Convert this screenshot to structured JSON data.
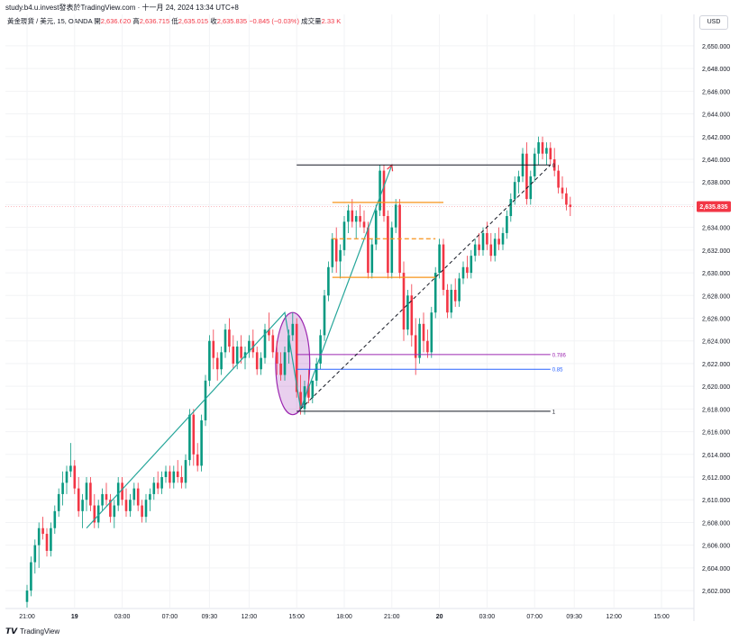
{
  "header": {
    "source_line": "study.b4.u.invest發表於TradingView.com · 十一月 24, 2024 13:34 UTC+8",
    "symbol": "黃金現貨 / 美元, 15, OANDA",
    "open_label": "開",
    "open": "2,636.620",
    "high_label": "高",
    "high": "2,636.715",
    "low_label": "低",
    "low": "2,635.015",
    "close_label": "收",
    "close": "2,635.835",
    "change": "−0.845 (−0.03%)",
    "volume_label": "成交量",
    "volume": "2.33 K",
    "currency": "USD"
  },
  "footer": {
    "brand": "TradingView",
    "logo_icon": "tradingview-logo-icon"
  },
  "colors": {
    "up": "#089981",
    "down": "#f23645",
    "trend": "#26a69a",
    "fib_786": "#9c27b0",
    "fib_85": "#2962ff",
    "orange": "#f7931a",
    "ellipse": "#9c27b0"
  },
  "chart_data": {
    "type": "candlestick",
    "title": "",
    "xlabel": "",
    "ylabel": "",
    "ylim": [
      2600.5,
      2651.5
    ],
    "y_ticks": [
      "2,650.000",
      "2,648.000",
      "2,646.000",
      "2,644.000",
      "2,642.000",
      "2,640.000",
      "2,638.000",
      "2,636.000",
      "2,634.000",
      "2,632.000",
      "2,630.000",
      "2,628.000",
      "2,626.000",
      "2,624.000",
      "2,622.000",
      "2,620.000",
      "2,618.000",
      "2,616.000",
      "2,614.000",
      "2,612.000",
      "2,610.000",
      "2,608.000",
      "2,606.000",
      "2,604.000",
      "2,602.000"
    ],
    "x_ticks": [
      {
        "label": "21:00",
        "bar": 0
      },
      {
        "label": "19",
        "bar": 12
      },
      {
        "label": "03:00",
        "bar": 24
      },
      {
        "label": "07:00",
        "bar": 36
      },
      {
        "label": "09:30",
        "bar": 46
      },
      {
        "label": "12:00",
        "bar": 56
      },
      {
        "label": "15:00",
        "bar": 68
      },
      {
        "label": "18:00",
        "bar": 80
      },
      {
        "label": "21:00",
        "bar": 92
      },
      {
        "label": "20",
        "bar": 104
      },
      {
        "label": "03:00",
        "bar": 116
      },
      {
        "label": "07:00",
        "bar": 128
      },
      {
        "label": "09:30",
        "bar": 138
      },
      {
        "label": "12:00",
        "bar": 148
      },
      {
        "label": "15:00",
        "bar": 160
      }
    ],
    "last_price_label": "2,635.835",
    "last_price": 2635.835,
    "candles": [
      [
        2601.0,
        2602.5,
        2600.5,
        2602.0
      ],
      [
        2602.0,
        2605.0,
        2601.5,
        2604.5
      ],
      [
        2604.5,
        2606.5,
        2603.5,
        2606.0
      ],
      [
        2606.0,
        2608.0,
        2604.0,
        2607.5
      ],
      [
        2607.5,
        2608.5,
        2606.5,
        2607.0
      ],
      [
        2607.0,
        2607.5,
        2605.0,
        2605.5
      ],
      [
        2605.5,
        2608.0,
        2605.0,
        2607.5
      ],
      [
        2607.5,
        2609.5,
        2607.0,
        2609.0
      ],
      [
        2609.0,
        2611.0,
        2608.5,
        2610.5
      ],
      [
        2610.5,
        2612.5,
        2609.5,
        2611.5
      ],
      [
        2611.5,
        2613.0,
        2610.5,
        2612.5
      ],
      [
        2612.5,
        2615.0,
        2612.0,
        2613.0
      ],
      [
        2613.0,
        2613.5,
        2610.5,
        2611.0
      ],
      [
        2611.0,
        2612.0,
        2608.5,
        2609.0
      ],
      [
        2609.0,
        2610.5,
        2607.5,
        2610.0
      ],
      [
        2610.0,
        2612.0,
        2609.0,
        2611.5
      ],
      [
        2611.5,
        2612.0,
        2609.0,
        2609.5
      ],
      [
        2609.5,
        2610.5,
        2607.5,
        2608.0
      ],
      [
        2608.0,
        2610.0,
        2607.5,
        2609.5
      ],
      [
        2609.5,
        2611.0,
        2609.0,
        2610.5
      ],
      [
        2610.5,
        2611.5,
        2609.5,
        2610.0
      ],
      [
        2610.0,
        2610.5,
        2608.0,
        2608.5
      ],
      [
        2608.5,
        2610.0,
        2607.5,
        2609.5
      ],
      [
        2609.5,
        2612.0,
        2609.0,
        2611.5
      ],
      [
        2611.5,
        2612.0,
        2609.5,
        2610.0
      ],
      [
        2610.0,
        2611.0,
        2608.5,
        2609.0
      ],
      [
        2609.0,
        2610.5,
        2608.5,
        2610.0
      ],
      [
        2610.0,
        2611.5,
        2609.5,
        2611.0
      ],
      [
        2611.0,
        2611.5,
        2609.0,
        2609.5
      ],
      [
        2609.5,
        2610.0,
        2608.0,
        2608.5
      ],
      [
        2608.5,
        2610.5,
        2608.0,
        2610.0
      ],
      [
        2610.0,
        2611.0,
        2609.0,
        2610.5
      ],
      [
        2610.5,
        2612.0,
        2610.0,
        2611.5
      ],
      [
        2611.5,
        2612.5,
        2610.5,
        2611.0
      ],
      [
        2611.0,
        2612.5,
        2610.5,
        2612.0
      ],
      [
        2612.0,
        2613.0,
        2611.5,
        2612.5
      ],
      [
        2612.5,
        2613.0,
        2611.0,
        2611.5
      ],
      [
        2611.5,
        2613.0,
        2611.0,
        2612.5
      ],
      [
        2612.5,
        2613.5,
        2611.5,
        2612.0
      ],
      [
        2612.0,
        2613.0,
        2611.0,
        2611.5
      ],
      [
        2611.5,
        2614.0,
        2611.0,
        2613.5
      ],
      [
        2613.5,
        2618.0,
        2613.0,
        2617.5
      ],
      [
        2617.5,
        2618.0,
        2613.0,
        2614.0
      ],
      [
        2614.0,
        2615.0,
        2612.5,
        2613.0
      ],
      [
        2613.0,
        2617.5,
        2612.5,
        2617.0
      ],
      [
        2617.0,
        2621.0,
        2616.5,
        2620.5
      ],
      [
        2620.5,
        2624.5,
        2620.0,
        2624.0
      ],
      [
        2624.0,
        2625.0,
        2621.5,
        2622.5
      ],
      [
        2622.5,
        2623.0,
        2620.5,
        2621.5
      ],
      [
        2621.5,
        2623.5,
        2621.0,
        2623.0
      ],
      [
        2623.0,
        2625.5,
        2622.5,
        2625.0
      ],
      [
        2625.0,
        2626.0,
        2623.0,
        2623.5
      ],
      [
        2623.5,
        2624.5,
        2621.5,
        2622.0
      ],
      [
        2622.0,
        2624.0,
        2621.5,
        2623.5
      ],
      [
        2623.5,
        2624.5,
        2622.0,
        2622.5
      ],
      [
        2622.5,
        2623.5,
        2621.5,
        2623.0
      ],
      [
        2623.0,
        2624.5,
        2622.5,
        2624.0
      ],
      [
        2624.0,
        2625.0,
        2622.5,
        2623.0
      ],
      [
        2623.0,
        2623.5,
        2621.0,
        2621.5
      ],
      [
        2621.5,
        2623.0,
        2621.0,
        2622.5
      ],
      [
        2622.5,
        2625.5,
        2622.0,
        2625.0
      ],
      [
        2625.0,
        2626.5,
        2624.0,
        2624.5
      ],
      [
        2624.5,
        2625.0,
        2622.5,
        2623.0
      ],
      [
        2623.0,
        2624.0,
        2621.0,
        2622.0
      ],
      [
        2622.0,
        2623.0,
        2620.5,
        2621.0
      ],
      [
        2621.0,
        2623.5,
        2620.5,
        2623.0
      ],
      [
        2623.0,
        2625.0,
        2622.0,
        2624.5
      ],
      [
        2624.5,
        2626.5,
        2624.0,
        2625.5
      ],
      [
        2625.5,
        2626.0,
        2619.0,
        2619.5
      ],
      [
        2619.5,
        2621.0,
        2617.5,
        2618.0
      ],
      [
        2618.0,
        2620.5,
        2617.5,
        2620.0
      ],
      [
        2620.0,
        2621.5,
        2618.5,
        2619.0
      ],
      [
        2619.0,
        2620.5,
        2618.5,
        2620.5
      ],
      [
        2620.5,
        2622.5,
        2620.0,
        2622.0
      ],
      [
        2622.0,
        2625.0,
        2621.5,
        2624.5
      ],
      [
        2624.5,
        2628.5,
        2624.0,
        2628.0
      ],
      [
        2628.0,
        2631.0,
        2627.5,
        2630.5
      ],
      [
        2630.5,
        2633.5,
        2630.0,
        2633.0
      ],
      [
        2633.0,
        2634.0,
        2630.0,
        2631.0
      ],
      [
        2631.0,
        2632.5,
        2629.5,
        2632.0
      ],
      [
        2632.0,
        2635.0,
        2631.5,
        2634.5
      ],
      [
        2634.5,
        2636.0,
        2633.5,
        2635.5
      ],
      [
        2635.5,
        2636.5,
        2634.0,
        2634.5
      ],
      [
        2634.5,
        2635.5,
        2633.0,
        2635.0
      ],
      [
        2635.0,
        2636.0,
        2634.0,
        2634.5
      ],
      [
        2634.5,
        2635.5,
        2633.5,
        2634.0
      ],
      [
        2634.0,
        2634.5,
        2629.5,
        2630.0
      ],
      [
        2630.0,
        2633.0,
        2629.5,
        2632.5
      ],
      [
        2632.5,
        2636.0,
        2632.0,
        2635.5
      ],
      [
        2635.5,
        2639.5,
        2635.0,
        2639.0
      ],
      [
        2639.0,
        2639.5,
        2634.5,
        2635.0
      ],
      [
        2635.0,
        2635.5,
        2629.5,
        2630.0
      ],
      [
        2630.0,
        2634.5,
        2629.5,
        2634.0
      ],
      [
        2634.0,
        2636.5,
        2633.5,
        2636.0
      ],
      [
        2636.0,
        2636.5,
        2629.5,
        2630.0
      ],
      [
        2630.0,
        2631.0,
        2624.0,
        2625.0
      ],
      [
        2625.0,
        2628.5,
        2624.5,
        2628.0
      ],
      [
        2628.0,
        2629.0,
        2623.5,
        2624.5
      ],
      [
        2624.5,
        2626.0,
        2621.0,
        2622.5
      ],
      [
        2622.5,
        2626.0,
        2622.0,
        2625.5
      ],
      [
        2625.5,
        2626.5,
        2623.0,
        2624.0
      ],
      [
        2624.0,
        2625.0,
        2622.5,
        2623.0
      ],
      [
        2623.0,
        2627.0,
        2622.5,
        2626.5
      ],
      [
        2626.5,
        2630.5,
        2626.0,
        2630.0
      ],
      [
        2630.0,
        2633.0,
        2629.5,
        2632.5
      ],
      [
        2632.5,
        2633.0,
        2628.0,
        2628.5
      ],
      [
        2628.5,
        2629.0,
        2626.0,
        2626.5
      ],
      [
        2626.5,
        2629.0,
        2626.0,
        2628.5
      ],
      [
        2628.5,
        2629.5,
        2627.0,
        2627.5
      ],
      [
        2627.5,
        2630.0,
        2627.0,
        2629.5
      ],
      [
        2629.5,
        2631.0,
        2629.0,
        2630.5
      ],
      [
        2630.5,
        2631.5,
        2629.5,
        2630.0
      ],
      [
        2630.0,
        2632.0,
        2629.5,
        2631.5
      ],
      [
        2631.5,
        2633.0,
        2631.0,
        2632.5
      ],
      [
        2632.5,
        2633.5,
        2631.5,
        2632.0
      ],
      [
        2632.0,
        2634.0,
        2631.5,
        2633.5
      ],
      [
        2633.5,
        2634.5,
        2632.0,
        2632.5
      ],
      [
        2632.5,
        2633.5,
        2631.0,
        2631.5
      ],
      [
        2631.5,
        2633.5,
        2631.0,
        2633.0
      ],
      [
        2633.0,
        2634.0,
        2632.0,
        2632.5
      ],
      [
        2632.5,
        2634.0,
        2632.0,
        2633.5
      ],
      [
        2633.5,
        2635.5,
        2633.0,
        2635.0
      ],
      [
        2635.0,
        2637.0,
        2634.5,
        2636.5
      ],
      [
        2636.5,
        2638.5,
        2636.0,
        2638.0
      ],
      [
        2638.0,
        2639.0,
        2637.0,
        2638.5
      ],
      [
        2638.5,
        2641.0,
        2638.0,
        2640.5
      ],
      [
        2640.5,
        2641.5,
        2636.0,
        2636.5
      ],
      [
        2636.5,
        2639.0,
        2636.0,
        2638.5
      ],
      [
        2638.5,
        2641.0,
        2638.0,
        2640.5
      ],
      [
        2640.5,
        2642.0,
        2639.5,
        2641.5
      ],
      [
        2641.5,
        2642.0,
        2640.0,
        2640.5
      ],
      [
        2640.5,
        2641.5,
        2639.5,
        2641.0
      ],
      [
        2641.0,
        2641.5,
        2639.5,
        2640.0
      ],
      [
        2640.0,
        2641.0,
        2638.5,
        2639.0
      ],
      [
        2639.0,
        2639.5,
        2637.0,
        2637.5
      ],
      [
        2637.5,
        2638.5,
        2636.5,
        2637.0
      ],
      [
        2637.0,
        2637.5,
        2635.5,
        2636.0
      ],
      [
        2636.0,
        2636.7,
        2635.0,
        2635.8
      ]
    ],
    "drawings": {
      "trend_lines": [
        {
          "points": [
            [
              15,
              2607.5
            ],
            [
              65,
              2626.5
            ],
            [
              69,
              2618.0
            ],
            [
              92,
              2639.5
            ]
          ]
        }
      ],
      "fib_retracement": {
        "from_bar": 68,
        "to_bar": 132,
        "levels": [
          {
            "label": "0",
            "price": 2639.5,
            "color": "#131722"
          },
          {
            "label": "0.786",
            "price": 2622.8,
            "color": "#9c27b0"
          },
          {
            "label": "0.85",
            "price": 2621.5,
            "color": "#2962ff"
          },
          {
            "label": "1",
            "price": 2617.8,
            "color": "#131722"
          }
        ]
      },
      "dashed_diagonal": {
        "from": [
          69,
          2618.0
        ],
        "to": [
          132,
          2639.5
        ]
      },
      "orange_lines": [
        {
          "from_bar": 77,
          "to_bar": 105,
          "price": 2636.2,
          "dashed": false
        },
        {
          "from_bar": 77,
          "to_bar": 103,
          "price": 2633.0,
          "dashed": true
        },
        {
          "from_bar": 77,
          "to_bar": 103,
          "price": 2629.6,
          "dashed": false
        }
      ],
      "ellipse": {
        "center_bar": 67,
        "center_price": 2622.0,
        "rx_bars": 4.3,
        "ry_price": 4.5
      }
    }
  }
}
